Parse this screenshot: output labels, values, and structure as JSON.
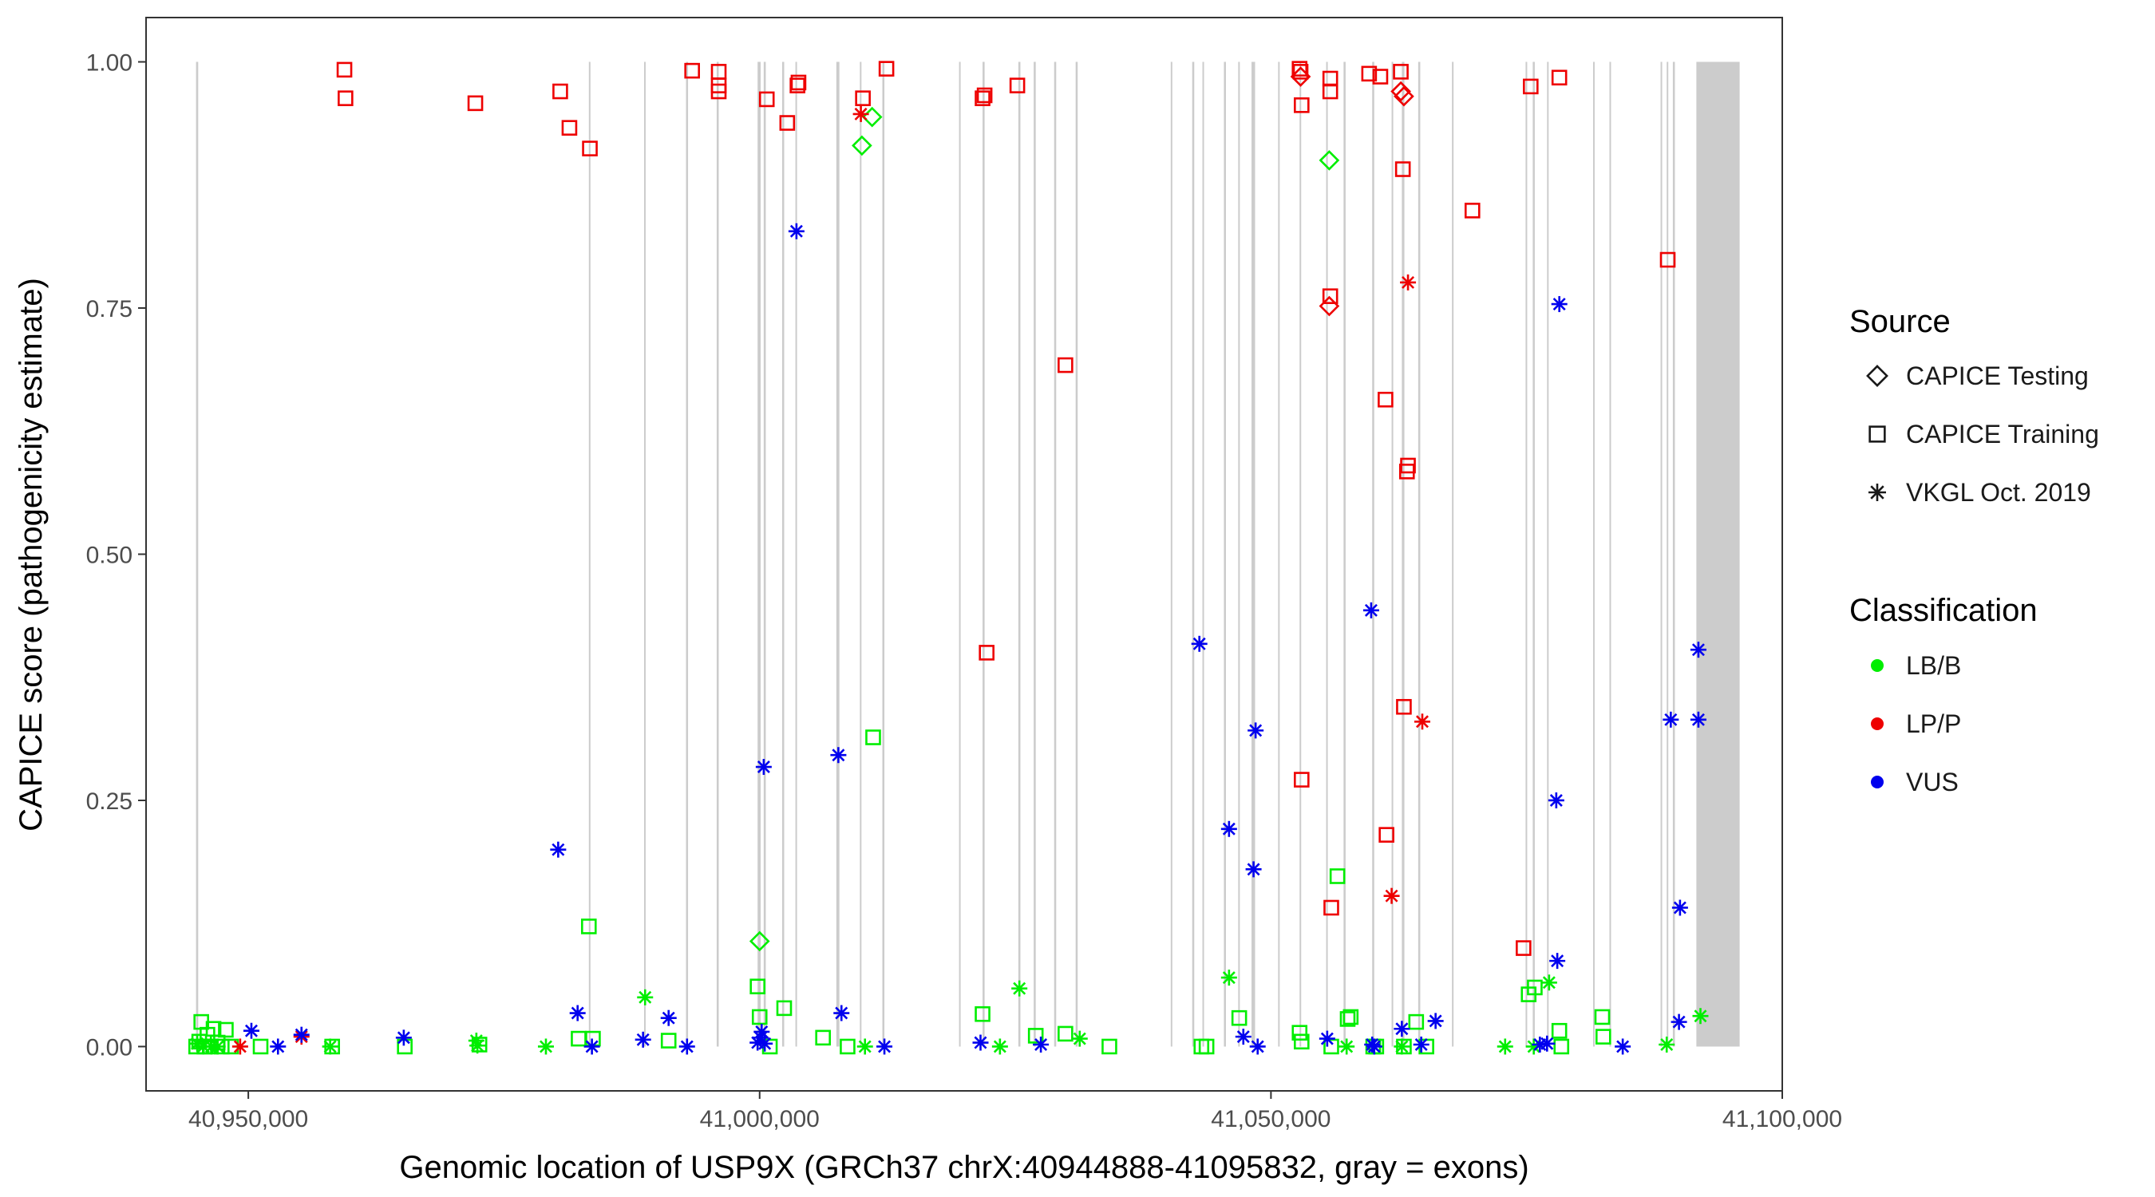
{
  "chart_data": {
    "type": "scatter",
    "title": "",
    "xlabel": "Genomic location of USP9X (GRCh37 chrX:40944888-41095832, gray = exons)",
    "ylabel": "CAPICE score (pathogenicity estimate)",
    "xlim": [
      40940000,
      41100000
    ],
    "ylim": [
      -0.045,
      1.045
    ],
    "x_ticks": [
      40950000,
      41000000,
      41050000,
      41100000
    ],
    "x_tick_labels": [
      "40,950,000",
      "41,000,000",
      "41,050,000",
      "41,100,000"
    ],
    "y_ticks": [
      0.0,
      0.25,
      0.5,
      0.75,
      1.0
    ],
    "y_tick_labels": [
      "0.00",
      "0.25",
      "0.50",
      "0.75",
      "1.00"
    ],
    "legend": {
      "source": {
        "title": "Source",
        "items": [
          {
            "label": "CAPICE Testing",
            "shape": "diamond"
          },
          {
            "label": "CAPICE Training",
            "shape": "square"
          },
          {
            "label": "VKGL Oct. 2019",
            "shape": "asterisk"
          }
        ]
      },
      "classification": {
        "title": "Classification",
        "items": [
          {
            "label": "LB/B",
            "color": "#00ee00"
          },
          {
            "label": "LP/P",
            "color": "#ee0000"
          },
          {
            "label": "VUS",
            "color": "#0000ee"
          }
        ]
      }
    },
    "colors": {
      "LB/B": "#00ee00",
      "LP/P": "#ee0000",
      "VUS": "#0000ee",
      "exon": "#cccccc"
    },
    "exons": [
      [
        40944888,
        40945100
      ],
      [
        40983300,
        40983450
      ],
      [
        40988700,
        40988850
      ],
      [
        40992800,
        40993000
      ],
      [
        40995800,
        40996000
      ],
      [
        40999800,
        41000100
      ],
      [
        41000400,
        41000600
      ],
      [
        41002200,
        41002400
      ],
      [
        41003500,
        41003650
      ],
      [
        41007500,
        41007800
      ],
      [
        41009800,
        41009950
      ],
      [
        41012000,
        41012200
      ],
      [
        41019500,
        41019650
      ],
      [
        41021800,
        41022000
      ],
      [
        41025300,
        41025500
      ],
      [
        41026800,
        41027000
      ],
      [
        41028800,
        41029000
      ],
      [
        41030900,
        41031100
      ],
      [
        41040200,
        41040350
      ],
      [
        41042300,
        41042500
      ],
      [
        41043300,
        41043450
      ],
      [
        41045400,
        41045600
      ],
      [
        41046800,
        41046950
      ],
      [
        41048100,
        41048450
      ],
      [
        41050700,
        41050850
      ],
      [
        41052800,
        41052950
      ],
      [
        41055400,
        41055550
      ],
      [
        41057100,
        41057300
      ],
      [
        41059900,
        41060100
      ],
      [
        41061800,
        41061950
      ],
      [
        41062800,
        41063050
      ],
      [
        41064400,
        41064600
      ],
      [
        41067700,
        41067850
      ],
      [
        41074900,
        41075050
      ],
      [
        41075600,
        41075800
      ],
      [
        41077000,
        41077150
      ],
      [
        41081500,
        41081650
      ],
      [
        41083100,
        41083250
      ],
      [
        41088100,
        41088250
      ],
      [
        41088700,
        41088850
      ],
      [
        41089300,
        41089500
      ],
      [
        41091600,
        41095832
      ]
    ],
    "series": [
      {
        "name": "CAPICE Testing / LB/B",
        "source": "CAPICE Testing",
        "classification": "LB/B",
        "points": [
          [
            41000000,
            0.107
          ],
          [
            41010000,
            0.915
          ],
          [
            41011000,
            0.944
          ],
          [
            41055700,
            0.9
          ]
        ]
      },
      {
        "name": "CAPICE Testing / LP/P",
        "source": "CAPICE Testing",
        "classification": "LP/P",
        "points": [
          [
            41052900,
            0.985
          ],
          [
            41055700,
            0.752
          ],
          [
            41062700,
            0.97
          ],
          [
            41063000,
            0.965
          ]
        ]
      },
      {
        "name": "CAPICE Training / LB/B",
        "source": "CAPICE Training",
        "classification": "LB/B",
        "points": [
          [
            40944900,
            0.0
          ],
          [
            40945200,
            0.005
          ],
          [
            40945400,
            0.025
          ],
          [
            40945700,
            0.0
          ],
          [
            40946000,
            0.012
          ],
          [
            40946300,
            0.0
          ],
          [
            40946600,
            0.018
          ],
          [
            40947000,
            0.004
          ],
          [
            40947400,
            0.0
          ],
          [
            40947800,
            0.017
          ],
          [
            40948300,
            0.0
          ],
          [
            40951200,
            0.0
          ],
          [
            40958200,
            0.0
          ],
          [
            40965300,
            0.0
          ],
          [
            40972600,
            0.002
          ],
          [
            40982300,
            0.008
          ],
          [
            40983300,
            0.122
          ],
          [
            40983700,
            0.008
          ],
          [
            40991100,
            0.006
          ],
          [
            40999800,
            0.061
          ],
          [
            41000000,
            0.03
          ],
          [
            41001000,
            0.0
          ],
          [
            41002400,
            0.039
          ],
          [
            41006200,
            0.009
          ],
          [
            41008600,
            0.0
          ],
          [
            41011100,
            0.314
          ],
          [
            41021800,
            0.033
          ],
          [
            41027000,
            0.011
          ],
          [
            41029900,
            0.013
          ],
          [
            41034200,
            0.0
          ],
          [
            41043200,
            0.0
          ],
          [
            41043700,
            0.0
          ],
          [
            41046900,
            0.029
          ],
          [
            41052800,
            0.014
          ],
          [
            41053000,
            0.005
          ],
          [
            41055900,
            0.0
          ],
          [
            41056500,
            0.173
          ],
          [
            41057500,
            0.028
          ],
          [
            41057800,
            0.03
          ],
          [
            41060000,
            0.0
          ],
          [
            41060300,
            0.0
          ],
          [
            41063000,
            0.0
          ],
          [
            41064200,
            0.025
          ],
          [
            41065200,
            0.0
          ],
          [
            41075200,
            0.053
          ],
          [
            41075800,
            0.06
          ],
          [
            41078200,
            0.016
          ],
          [
            41078400,
            0.0
          ],
          [
            41082400,
            0.03
          ],
          [
            41082500,
            0.01
          ]
        ]
      },
      {
        "name": "CAPICE Training / LP/P",
        "source": "CAPICE Training",
        "classification": "LP/P",
        "points": [
          [
            40959400,
            0.992
          ],
          [
            40959500,
            0.963
          ],
          [
            40972200,
            0.958
          ],
          [
            40980500,
            0.97
          ],
          [
            40981400,
            0.933
          ],
          [
            40983400,
            0.912
          ],
          [
            40993400,
            0.991
          ],
          [
            40996000,
            0.99
          ],
          [
            40996000,
            0.976
          ],
          [
            40996000,
            0.97
          ],
          [
            41000700,
            0.962
          ],
          [
            41002700,
            0.938
          ],
          [
            41003700,
            0.976
          ],
          [
            41003800,
            0.979
          ],
          [
            41010100,
            0.963
          ],
          [
            41012400,
            0.993
          ],
          [
            41021800,
            0.963
          ],
          [
            41022000,
            0.966
          ],
          [
            41022200,
            0.4
          ],
          [
            41025200,
            0.976
          ],
          [
            41029900,
            0.692
          ],
          [
            41052800,
            0.993
          ],
          [
            41052900,
            0.99
          ],
          [
            41053000,
            0.956
          ],
          [
            41053000,
            0.271
          ],
          [
            41055800,
            0.983
          ],
          [
            41055800,
            0.97
          ],
          [
            41055800,
            0.762
          ],
          [
            41055900,
            0.141
          ],
          [
            41059600,
            0.988
          ],
          [
            41060700,
            0.985
          ],
          [
            41061200,
            0.657
          ],
          [
            41061300,
            0.215
          ],
          [
            41062700,
            0.99
          ],
          [
            41062900,
            0.891
          ],
          [
            41063000,
            0.345
          ],
          [
            41063400,
            0.59
          ],
          [
            41063300,
            0.584
          ],
          [
            41069700,
            0.849
          ],
          [
            41074700,
            0.1
          ],
          [
            41075400,
            0.975
          ],
          [
            41078200,
            0.984
          ],
          [
            41088800,
            0.799
          ]
        ]
      },
      {
        "name": "VKGL Oct. 2019 / LB/B",
        "source": "VKGL Oct. 2019",
        "classification": "LB/B",
        "points": [
          [
            40945000,
            0.003
          ],
          [
            40945600,
            0.0
          ],
          [
            40946400,
            0.0
          ],
          [
            40947000,
            0.0
          ],
          [
            40958000,
            0.0
          ],
          [
            40972300,
            0.006
          ],
          [
            40972400,
            0.001
          ],
          [
            40979100,
            0.0
          ],
          [
            40988800,
            0.05
          ],
          [
            41010300,
            0.0
          ],
          [
            41023500,
            0.0
          ],
          [
            41025400,
            0.059
          ],
          [
            41031300,
            0.008
          ],
          [
            41045900,
            0.07
          ],
          [
            41057400,
            0.0
          ],
          [
            41062800,
            0.0
          ],
          [
            41072900,
            0.0
          ],
          [
            41075700,
            0.0
          ],
          [
            41077200,
            0.065
          ],
          [
            41088700,
            0.002
          ],
          [
            41092000,
            0.031
          ]
        ]
      },
      {
        "name": "VKGL Oct. 2019 / LP/P",
        "source": "VKGL Oct. 2019",
        "classification": "LP/P",
        "points": [
          [
            40949200,
            0.0
          ],
          [
            40955200,
            0.01
          ],
          [
            41009900,
            0.947
          ],
          [
            41061800,
            0.153
          ],
          [
            41063400,
            0.776
          ],
          [
            41064800,
            0.33
          ]
        ]
      },
      {
        "name": "VKGL Oct. 2019 / VUS",
        "source": "VKGL Oct. 2019",
        "classification": "VUS",
        "points": [
          [
            40950300,
            0.016
          ],
          [
            40952900,
            0.0
          ],
          [
            40955200,
            0.012
          ],
          [
            40965200,
            0.009
          ],
          [
            40980300,
            0.2
          ],
          [
            40982200,
            0.034
          ],
          [
            40983600,
            0.0
          ],
          [
            40988600,
            0.007
          ],
          [
            40991100,
            0.029
          ],
          [
            40992900,
            0.0
          ],
          [
            40999800,
            0.004
          ],
          [
            41000100,
            0.009
          ],
          [
            41000200,
            0.015
          ],
          [
            41000400,
            0.284
          ],
          [
            41000500,
            0.003
          ],
          [
            41003600,
            0.828
          ],
          [
            41007700,
            0.296
          ],
          [
            41008000,
            0.034
          ],
          [
            41012200,
            0.0
          ],
          [
            41021600,
            0.004
          ],
          [
            41027500,
            0.002
          ],
          [
            41043000,
            0.409
          ],
          [
            41045900,
            0.221
          ],
          [
            41047300,
            0.01
          ],
          [
            41048300,
            0.18
          ],
          [
            41048500,
            0.321
          ],
          [
            41048700,
            0.0
          ],
          [
            41055500,
            0.008
          ],
          [
            41059800,
            0.443
          ],
          [
            41059900,
            0.002
          ],
          [
            41060100,
            0.0
          ],
          [
            41062800,
            0.018
          ],
          [
            41064700,
            0.002
          ],
          [
            41066100,
            0.026
          ],
          [
            41076300,
            0.002
          ],
          [
            41077000,
            0.003
          ],
          [
            41077900,
            0.25
          ],
          [
            41078000,
            0.087
          ],
          [
            41078200,
            0.754
          ],
          [
            41084400,
            0.0
          ],
          [
            41089100,
            0.332
          ],
          [
            41089900,
            0.025
          ],
          [
            41090000,
            0.141
          ],
          [
            41091800,
            0.403
          ],
          [
            41091800,
            0.332
          ]
        ]
      }
    ]
  }
}
